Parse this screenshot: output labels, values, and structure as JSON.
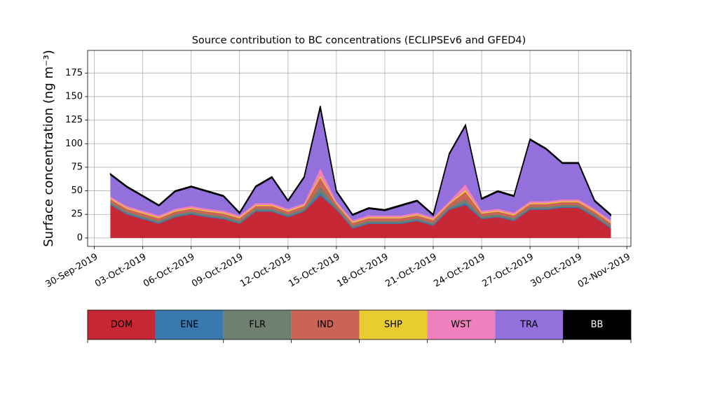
{
  "chart_data": {
    "type": "stacked_area",
    "title": "Source contribution to BC concentrations (ECLIPSEv6 and GFED4)",
    "y_label": "Surface concentration (ng m⁻³)",
    "x": [
      "2019-10-01",
      "2019-10-02",
      "2019-10-03",
      "2019-10-04",
      "2019-10-05",
      "2019-10-06",
      "2019-10-07",
      "2019-10-08",
      "2019-10-09",
      "2019-10-10",
      "2019-10-11",
      "2019-10-12",
      "2019-10-13",
      "2019-10-14",
      "2019-10-15",
      "2019-10-16",
      "2019-10-17",
      "2019-10-18",
      "2019-10-19",
      "2019-10-20",
      "2019-10-21",
      "2019-10-22",
      "2019-10-23",
      "2019-10-24",
      "2019-10-25",
      "2019-10-26",
      "2019-10-27",
      "2019-10-28",
      "2019-10-29",
      "2019-10-30",
      "2019-10-31",
      "2019-11-01"
    ],
    "series": [
      {
        "name": "DOM",
        "color": "#c62836",
        "values": [
          35,
          25,
          20,
          15,
          22,
          25,
          22,
          20,
          15,
          28,
          28,
          22,
          28,
          45,
          30,
          10,
          15,
          15,
          15,
          18,
          13,
          30,
          35,
          20,
          22,
          18,
          30,
          30,
          32,
          32,
          22,
          10
        ]
      },
      {
        "name": "ENE",
        "color": "#3a78b0",
        "values": [
          1,
          1,
          1,
          1,
          1,
          1,
          1,
          1,
          1,
          1,
          1,
          1,
          1,
          3,
          1,
          1,
          1,
          1,
          1,
          1,
          1,
          1,
          2,
          1,
          1,
          1,
          1,
          1,
          1,
          1,
          1,
          1
        ]
      },
      {
        "name": "FLR",
        "color": "#6f8070",
        "values": [
          2,
          2,
          2,
          2,
          2,
          2,
          2,
          2,
          2,
          2,
          2,
          2,
          2,
          6,
          2,
          2,
          2,
          2,
          2,
          2,
          2,
          2,
          4,
          2,
          2,
          2,
          2,
          2,
          2,
          2,
          2,
          2
        ]
      },
      {
        "name": "IND",
        "color": "#c96456",
        "values": [
          3,
          3,
          3,
          3,
          3,
          3,
          3,
          3,
          3,
          3,
          3,
          3,
          3,
          10,
          3,
          3,
          3,
          3,
          3,
          3,
          3,
          3,
          8,
          3,
          3,
          3,
          3,
          3,
          3,
          3,
          3,
          3
        ]
      },
      {
        "name": "SHP",
        "color": "#e8cc30",
        "values": [
          1,
          1,
          1,
          1,
          1,
          1,
          1,
          1,
          1,
          1,
          1,
          1,
          1,
          2,
          1,
          1,
          1,
          1,
          1,
          1,
          1,
          1,
          2,
          1,
          1,
          1,
          1,
          1,
          1,
          1,
          1,
          1
        ]
      },
      {
        "name": "WST",
        "color": "#f07fbd",
        "values": [
          2,
          2,
          2,
          2,
          2,
          2,
          2,
          2,
          2,
          2,
          2,
          2,
          2,
          8,
          2,
          2,
          2,
          2,
          2,
          2,
          2,
          2,
          6,
          2,
          2,
          2,
          2,
          2,
          2,
          2,
          2,
          2
        ]
      },
      {
        "name": "TRA",
        "color": "#9370db",
        "values": [
          23,
          20,
          15,
          10,
          18,
          20,
          18,
          15,
          2,
          17,
          27,
          8,
          27,
          64,
          10,
          5,
          7,
          5,
          10,
          12,
          2,
          50,
          62,
          12,
          18,
          17,
          65,
          55,
          38,
          38,
          8,
          5
        ]
      },
      {
        "name": "BB",
        "color": "#000000",
        "values": [
          1,
          1,
          1,
          1,
          1,
          1,
          1,
          1,
          1,
          1,
          1,
          1,
          1,
          2,
          1,
          1,
          1,
          1,
          1,
          1,
          1,
          1,
          1,
          1,
          1,
          1,
          1,
          1,
          1,
          1,
          1,
          1
        ]
      }
    ],
    "xlim": [
      "2019-09-29T14:00:00Z",
      "2019-11-02T06:00:00Z"
    ],
    "xticks": [
      {
        "value": "2019-09-30",
        "label": "30-Sep-2019"
      },
      {
        "value": "2019-10-03",
        "label": "03-Oct-2019"
      },
      {
        "value": "2019-10-06",
        "label": "06-Oct-2019"
      },
      {
        "value": "2019-10-09",
        "label": "09-Oct-2019"
      },
      {
        "value": "2019-10-12",
        "label": "12-Oct-2019"
      },
      {
        "value": "2019-10-15",
        "label": "15-Oct-2019"
      },
      {
        "value": "2019-10-18",
        "label": "18-Oct-2019"
      },
      {
        "value": "2019-10-21",
        "label": "21-Oct-2019"
      },
      {
        "value": "2019-10-24",
        "label": "24-Oct-2019"
      },
      {
        "value": "2019-10-27",
        "label": "27-Oct-2019"
      },
      {
        "value": "2019-10-30",
        "label": "30-Oct-2019"
      },
      {
        "value": "2019-11-02",
        "label": "02-Nov-2019"
      }
    ],
    "ylim": [
      -9,
      199
    ],
    "yticks": [
      0,
      25,
      50,
      75,
      100,
      125,
      150,
      175
    ],
    "grid": true
  }
}
